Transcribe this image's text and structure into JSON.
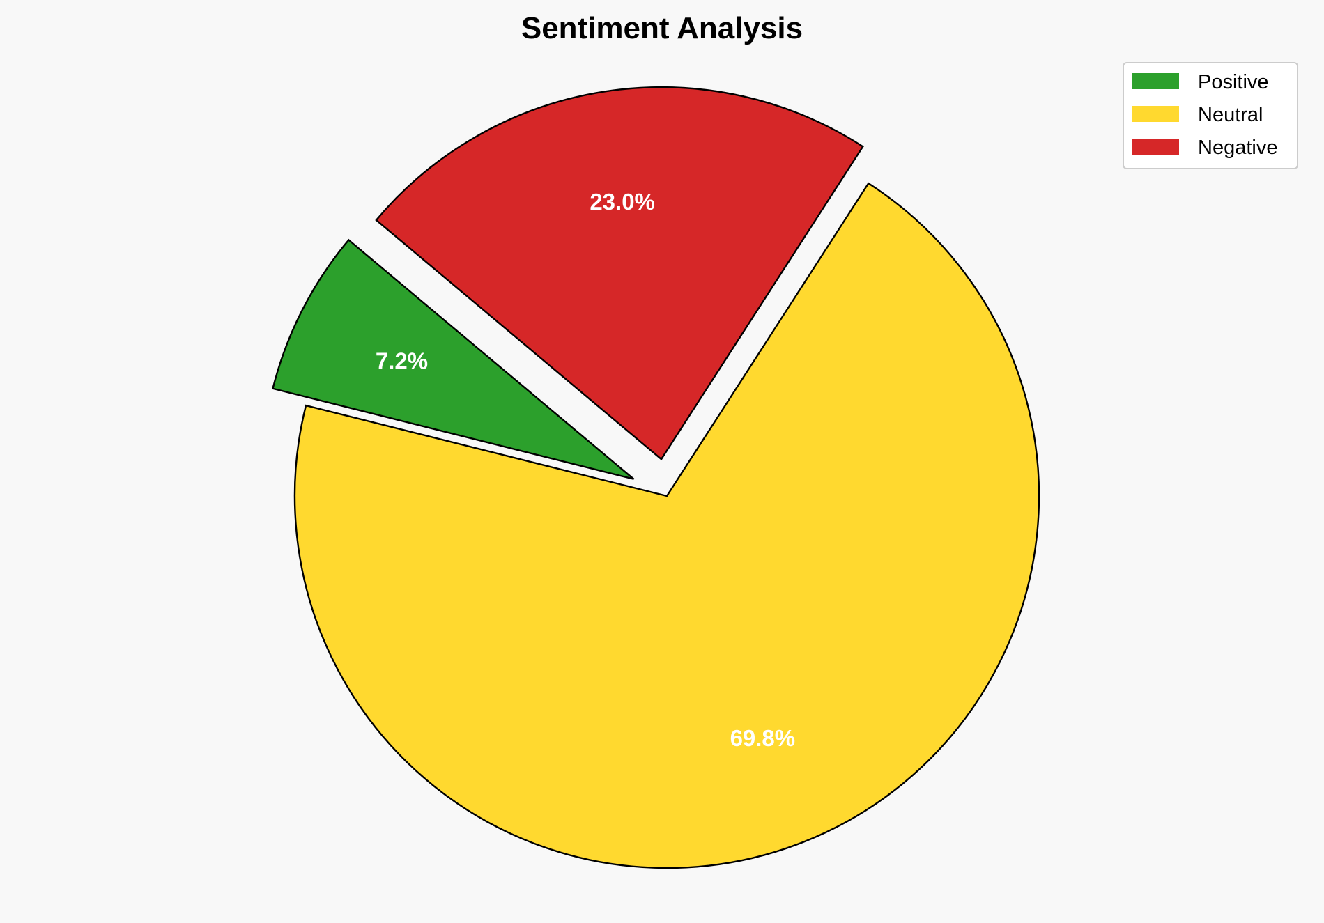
{
  "chart_data": {
    "type": "pie",
    "title": "Sentiment Analysis",
    "categories": [
      "Positive",
      "Neutral",
      "Negative"
    ],
    "values": [
      7.2,
      69.8,
      23.0
    ],
    "labels": [
      "7.2%",
      "69.8%",
      "23.0%"
    ],
    "colors": [
      "#2ca02c",
      "#ffd92f",
      "#d62728"
    ],
    "explode": [
      0.1,
      0,
      0.1
    ],
    "start_angle": 140,
    "counterclockwise": true,
    "edge_color": "#000000",
    "legend_position": "top-right",
    "legend": [
      "Positive",
      "Neutral",
      "Negative"
    ]
  }
}
